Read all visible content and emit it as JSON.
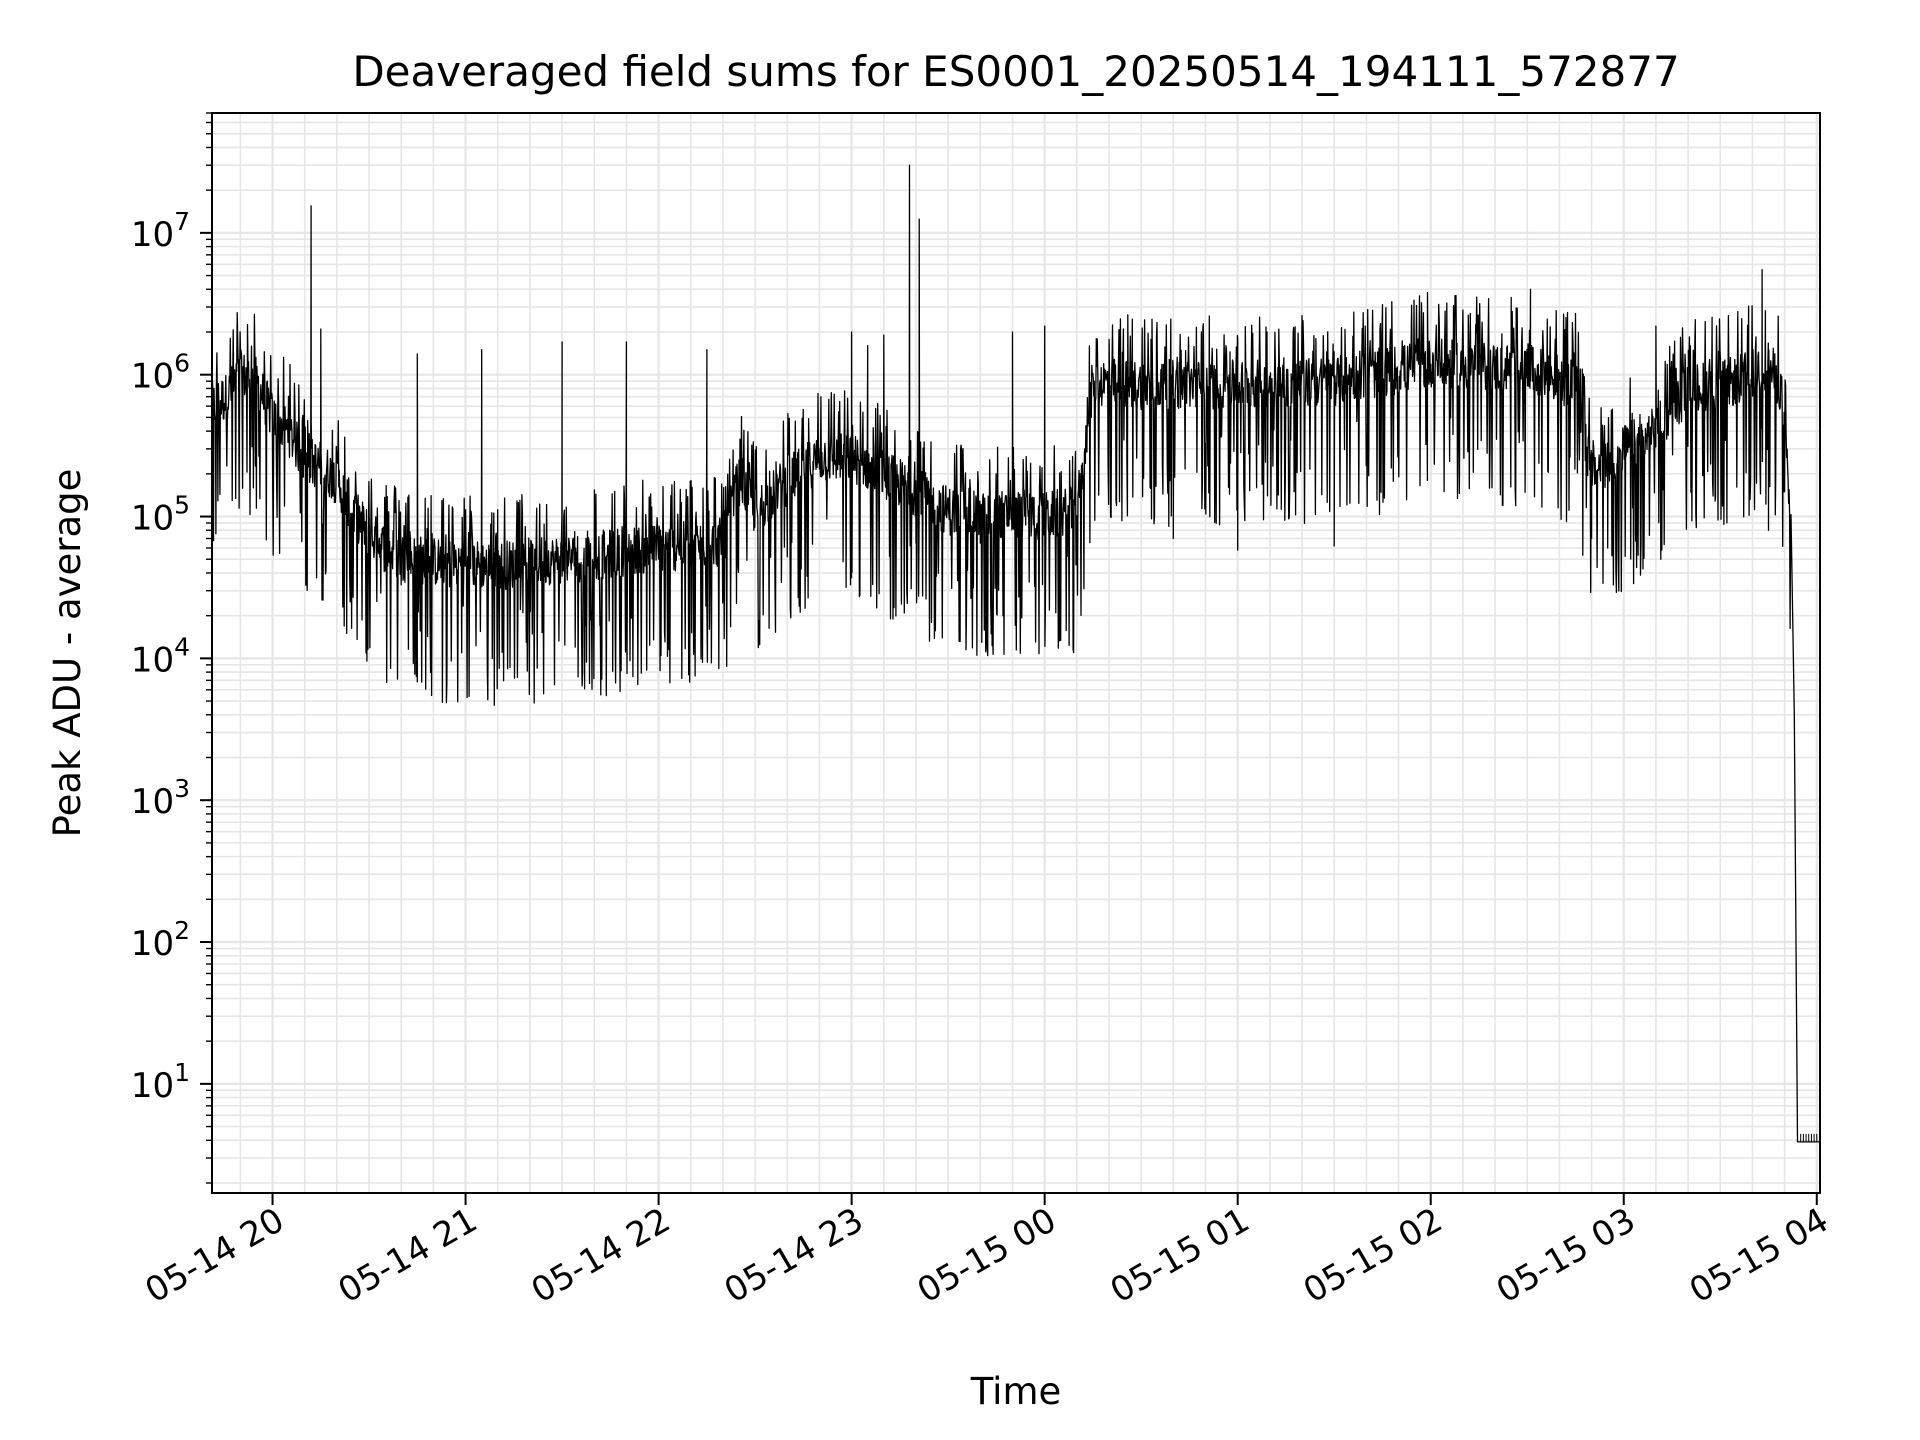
{
  "chart_data": {
    "type": "line",
    "title": "Deaveraged field sums for ES0001_20250514_194111_572877",
    "xlabel": "Time",
    "ylabel": "Peak ADU - average",
    "yscale": "log",
    "ylim": [
      1.7,
      70000000
    ],
    "xlim": [
      "2025-05-14 19:41:11",
      "2025-05-15 04:01:00"
    ],
    "grid": "major and minor, light gray",
    "x_tick_labels": [
      "05-14 20",
      "05-14 21",
      "05-14 22",
      "05-14 23",
      "05-15 00",
      "05-15 01",
      "05-15 02",
      "05-15 03",
      "05-15 04"
    ],
    "y_tick_labels": [
      {
        "base": "10",
        "exp": "1"
      },
      {
        "base": "10",
        "exp": "2"
      },
      {
        "base": "10",
        "exp": "3"
      },
      {
        "base": "10",
        "exp": "4"
      },
      {
        "base": "10",
        "exp": "5"
      },
      {
        "base": "10",
        "exp": "6"
      },
      {
        "base": "10",
        "exp": "7"
      }
    ],
    "series": [
      {
        "color": "#000000",
        "baseline": [
          [
            "2025-05-14 19:41",
            600000
          ],
          [
            "2025-05-14 19:46",
            700000
          ],
          [
            "2025-05-14 19:50",
            1000000
          ],
          [
            "2025-05-14 19:55",
            900000
          ],
          [
            "2025-05-14 20:00",
            500000
          ],
          [
            "2025-05-14 20:05",
            400000
          ],
          [
            "2025-05-14 20:10",
            250000
          ],
          [
            "2025-05-14 20:15",
            230000
          ],
          [
            "2025-05-14 20:20",
            180000
          ],
          [
            "2025-05-14 20:25",
            110000
          ],
          [
            "2025-05-14 20:30",
            75000
          ],
          [
            "2025-05-14 20:35",
            60000
          ],
          [
            "2025-05-14 20:40",
            52000
          ],
          [
            "2025-05-14 20:50",
            48000
          ],
          [
            "2025-05-14 21:00",
            47000
          ],
          [
            "2025-05-14 21:10",
            45000
          ],
          [
            "2025-05-14 21:20",
            48000
          ],
          [
            "2025-05-14 21:30",
            50000
          ],
          [
            "2025-05-14 21:40",
            53000
          ],
          [
            "2025-05-14 21:50",
            57000
          ],
          [
            "2025-05-14 22:00",
            60000
          ],
          [
            "2025-05-14 22:10",
            62000
          ],
          [
            "2025-05-14 22:20",
            66000
          ],
          [
            "2025-05-14 22:25",
            180000
          ],
          [
            "2025-05-14 22:30",
            110000
          ],
          [
            "2025-05-14 22:40",
            180000
          ],
          [
            "2025-05-14 22:50",
            260000
          ],
          [
            "2025-05-14 23:00",
            260000
          ],
          [
            "2025-05-14 23:10",
            200000
          ],
          [
            "2025-05-14 23:20",
            150000
          ],
          [
            "2025-05-14 23:30",
            110000
          ],
          [
            "2025-05-14 23:40",
            100000
          ],
          [
            "2025-05-14 23:50",
            105000
          ],
          [
            "2025-05-15 00:00",
            100000
          ],
          [
            "2025-05-15 00:10",
            110000
          ],
          [
            "2025-05-15 00:15",
            900000
          ],
          [
            "2025-05-15 00:30",
            850000
          ],
          [
            "2025-05-15 01:00",
            850000
          ],
          [
            "2025-05-15 01:30",
            900000
          ],
          [
            "2025-05-15 02:00",
            1200000
          ],
          [
            "2025-05-15 02:30",
            1100000
          ],
          [
            "2025-05-15 02:45",
            850000
          ],
          [
            "2025-05-15 02:50",
            200000
          ],
          [
            "2025-05-15 03:00",
            300000
          ],
          [
            "2025-05-15 03:10",
            400000
          ],
          [
            "2025-05-15 03:20",
            800000
          ],
          [
            "2025-05-15 03:35",
            900000
          ],
          [
            "2025-05-15 03:45",
            1200000
          ],
          [
            "2025-05-15 03:49",
            800000
          ],
          [
            "2025-05-15 03:52",
            80000
          ],
          [
            "2025-05-15 03:53",
            4000
          ],
          [
            "2025-05-15 03:54",
            3.9
          ],
          [
            "2025-05-15 04:01",
            3.9
          ]
        ],
        "spikes": [
          [
            "2025-05-14 20:12",
            15500000
          ],
          [
            "2025-05-14 20:15",
            2100000
          ],
          [
            "2025-05-14 20:45",
            1400000
          ],
          [
            "2025-05-14 21:05",
            1500000
          ],
          [
            "2025-05-14 21:30",
            1700000
          ],
          [
            "2025-05-14 21:50",
            1700000
          ],
          [
            "2025-05-14 22:15",
            1500000
          ],
          [
            "2025-05-14 23:00",
            2000000
          ],
          [
            "2025-05-14 23:05",
            1600000
          ],
          [
            "2025-05-14 23:10",
            1900000
          ],
          [
            "2025-05-14 23:18",
            30000000
          ],
          [
            "2025-05-14 23:21",
            12500000
          ],
          [
            "2025-05-14 23:50",
            2000000
          ],
          [
            "2025-05-15 00:00",
            2200000
          ],
          [
            "2025-05-15 01:00",
            1800000
          ],
          [
            "2025-05-15 01:59",
            3800000
          ],
          [
            "2025-05-15 02:05",
            3200000
          ],
          [
            "2025-05-15 02:25",
            3500000
          ],
          [
            "2025-05-15 02:31",
            4000000
          ],
          [
            "2025-05-15 02:45",
            2700000
          ],
          [
            "2025-05-15 03:10",
            2200000
          ],
          [
            "2025-05-15 03:43",
            5500000
          ]
        ],
        "dips": [
          [
            "2025-05-14 20:40",
            33000
          ],
          [
            "2025-05-14 20:55",
            32000
          ],
          [
            "2025-05-14 21:10",
            34000
          ],
          [
            "2025-05-14 21:30",
            38000
          ],
          [
            "2025-05-14 21:50",
            45000
          ],
          [
            "2025-05-14 22:15",
            42000
          ],
          [
            "2025-05-14 22:40",
            52000
          ],
          [
            "2025-05-14 23:20",
            65000
          ],
          [
            "2025-05-14 23:40",
            65000
          ],
          [
            "2025-05-15 00:10",
            70000
          ],
          [
            "2025-05-15 00:40",
            70000
          ],
          [
            "2025-05-15 01:00",
            58000
          ],
          [
            "2025-05-15 01:30",
            62000
          ],
          [
            "2025-05-15 02:50",
            70000
          ],
          [
            "2025-05-15 02:55",
            60000
          ],
          [
            "2025-05-15 03:45",
            80000
          ]
        ]
      }
    ]
  }
}
